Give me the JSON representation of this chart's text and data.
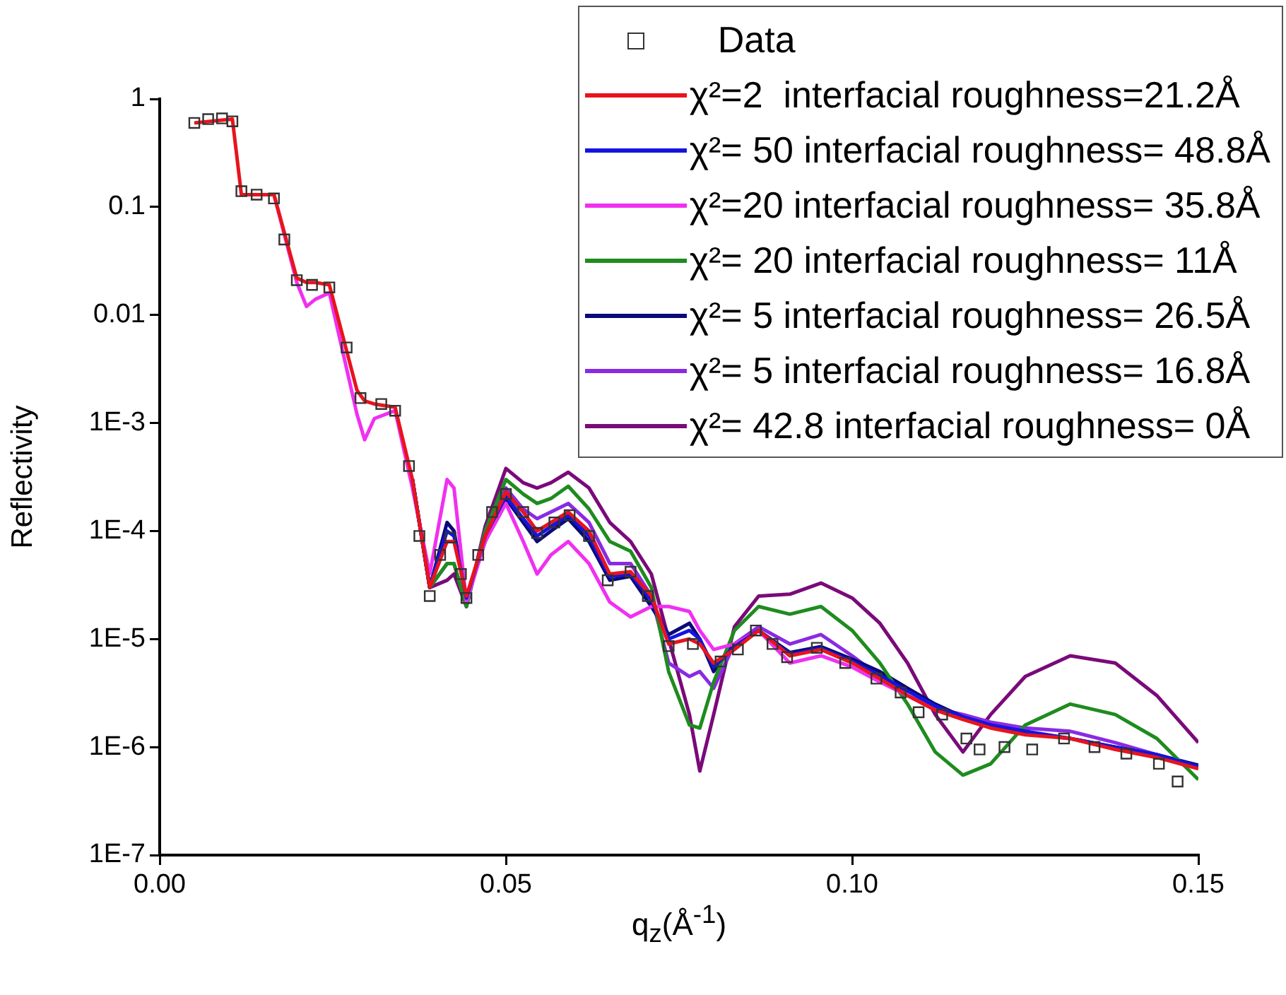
{
  "chart_data": {
    "type": "line",
    "xlabel": "q$_{z}$(Å$^{-1}$)",
    "ylabel": "Reflectivity",
    "log": "y",
    "grid": false,
    "legend": "top right",
    "xlim": [
      0,
      0.15
    ],
    "xticks": [
      {
        "value": 0,
        "label": "0.00"
      },
      {
        "value": 0.05,
        "label": "0.05"
      },
      {
        "value": 0.1,
        "label": "0.10"
      },
      {
        "value": 0.15,
        "label": "0.15"
      }
    ],
    "ylim": [
      1e-07,
      1
    ],
    "yticks": [
      {
        "value": 1e-07,
        "label": "1E-7"
      },
      {
        "value": 1e-06,
        "label": "1E-6"
      },
      {
        "value": 1e-05,
        "label": "1E-5"
      },
      {
        "value": 0.0001,
        "label": "1E-4"
      },
      {
        "value": 0.001,
        "label": "1E-3"
      },
      0.01,
      0.1,
      1
    ],
    "x": [
      0.005,
      0.0105,
      0.0118,
      0.0165,
      0.0198,
      0.0212,
      0.0225,
      0.0245,
      0.0285,
      0.0296,
      0.031,
      0.034,
      0.0365,
      0.039,
      0.0415,
      0.0425,
      0.0443,
      0.047,
      0.05,
      0.0525,
      0.0545,
      0.0565,
      0.059,
      0.062,
      0.065,
      0.068,
      0.071,
      0.0735,
      0.0765,
      0.078,
      0.08,
      0.083,
      0.0865,
      0.091,
      0.0955,
      0.1,
      0.104,
      0.108,
      0.112,
      0.116,
      0.12,
      0.125,
      0.1315,
      0.138,
      0.144,
      0.15
    ],
    "series": [
      {
        "name": "Data",
        "type": "scatter",
        "marker": "square",
        "color": "#333333",
        "x": [
          0.005,
          0.007,
          0.009,
          0.0105,
          0.0118,
          0.014,
          0.0165,
          0.018,
          0.0198,
          0.022,
          0.0245,
          0.027,
          0.029,
          0.032,
          0.034,
          0.036,
          0.0375,
          0.039,
          0.0405,
          0.042,
          0.0435,
          0.0443,
          0.046,
          0.048,
          0.05,
          0.0525,
          0.0545,
          0.057,
          0.0592,
          0.062,
          0.0647,
          0.068,
          0.0705,
          0.0735,
          0.077,
          0.081,
          0.0835,
          0.0861,
          0.0885,
          0.0906,
          0.0949,
          0.099,
          0.1035,
          0.107,
          0.1096,
          0.113,
          0.1165,
          0.1184,
          0.122,
          0.126,
          0.1306,
          0.135,
          0.1396,
          0.1443,
          0.147
        ],
        "values": [
          0.6,
          0.65,
          0.66,
          0.62,
          0.14,
          0.13,
          0.12,
          0.05,
          0.021,
          0.019,
          0.018,
          0.005,
          0.0017,
          0.0015,
          0.0013,
          0.0004,
          9e-05,
          2.5e-05,
          6e-05,
          8.7e-05,
          4e-05,
          2.4e-05,
          6e-05,
          0.00015,
          0.00022,
          0.00015,
          9.6e-05,
          0.00012,
          0.00014,
          9e-05,
          3.5e-05,
          4.2e-05,
          2.5e-05,
          8.6e-06,
          9e-06,
          6.2e-06,
          8e-06,
          1.2e-05,
          9e-06,
          6.8e-06,
          8.3e-06,
          6e-06,
          4.3e-06,
          3.2e-06,
          2.1e-06,
          2e-06,
          1.2e-06,
          9.5e-07,
          1e-06,
          9.5e-07,
          1.2e-06,
          1e-06,
          8.7e-07,
          7e-07,
          4.8e-07
        ]
      },
      {
        "name": "χ²=2  interfacial roughness=21.2Å",
        "color": "#e8141c",
        "values": [
          0.6,
          0.65,
          0.13,
          0.13,
          0.022,
          0.02,
          0.02,
          0.019,
          0.002,
          0.0016,
          0.0015,
          0.0014,
          0.0003,
          3e-05,
          8e-05,
          8e-05,
          2.5e-05,
          9e-05,
          0.00023,
          0.00015,
          0.0001,
          0.00012,
          0.00015,
          0.0001,
          4e-05,
          4.2e-05,
          2.5e-05,
          9e-06,
          1e-05,
          9e-06,
          6e-06,
          8e-06,
          1.2e-05,
          7e-06,
          8e-06,
          6e-06,
          4.3e-06,
          3e-06,
          2.2e-06,
          1.8e-06,
          1.5e-06,
          1.3e-06,
          1.2e-06,
          9.5e-07,
          8e-07,
          6.3e-07
        ]
      },
      {
        "name": "χ²= 50 interfacial roughness= 48.8Å",
        "color": "#1414e0",
        "values": [
          null,
          null,
          null,
          null,
          null,
          null,
          null,
          null,
          null,
          null,
          null,
          null,
          0.0003,
          3e-05,
          0.0001,
          9e-05,
          2.4e-05,
          9e-05,
          0.00021,
          0.00013,
          9e-05,
          0.00011,
          0.00014,
          9e-05,
          3.8e-05,
          4e-05,
          2.3e-05,
          1e-05,
          1.2e-05,
          1e-05,
          5.5e-06,
          8.5e-06,
          1.2e-05,
          7.2e-06,
          8.2e-06,
          6.2e-06,
          4.6e-06,
          3.3e-06,
          2.4e-06,
          1.9e-06,
          1.6e-06,
          1.4e-06,
          1.2e-06,
          1e-06,
          8.5e-07,
          6.6e-07
        ]
      },
      {
        "name": "χ²=20 interfacial roughness= 35.8Å",
        "color": "#f030f0",
        "values": [
          null,
          null,
          0.13,
          0.13,
          0.02,
          0.012,
          0.014,
          0.016,
          0.0012,
          0.0007,
          0.0011,
          0.0013,
          0.00025,
          4e-05,
          0.0003,
          0.00025,
          2.2e-05,
          8e-05,
          0.00018,
          8e-05,
          4e-05,
          6e-05,
          8e-05,
          5e-05,
          2.2e-05,
          1.6e-05,
          2e-05,
          2e-05,
          1.8e-05,
          1.2e-05,
          8e-06,
          9e-06,
          1.2e-05,
          6e-06,
          7e-06,
          5.5e-06,
          4e-06,
          3e-06,
          2.2e-06,
          null,
          null,
          null,
          null,
          null,
          null,
          null
        ]
      },
      {
        "name": "χ²= 20 interfacial roughness= 11Å",
        "color": "#1e8c1e",
        "values": [
          null,
          null,
          null,
          null,
          null,
          null,
          null,
          null,
          null,
          null,
          null,
          null,
          0.0003,
          3e-05,
          5e-05,
          5e-05,
          2e-05,
          0.0001,
          0.0003,
          0.00022,
          0.00018,
          0.0002,
          0.00026,
          0.00016,
          8e-05,
          6.5e-05,
          3e-05,
          5e-06,
          1.6e-06,
          1.5e-06,
          4e-06,
          1.2e-05,
          2e-05,
          1.7e-05,
          2e-05,
          1.2e-05,
          6e-06,
          2.5e-06,
          9e-07,
          5.5e-07,
          7e-07,
          1.6e-06,
          2.5e-06,
          2e-06,
          1.2e-06,
          5e-07
        ]
      },
      {
        "name": "χ²= 5 interfacial roughness= 26.5Å",
        "color": "#0a0a78",
        "values": [
          null,
          null,
          null,
          null,
          null,
          null,
          null,
          null,
          null,
          null,
          null,
          null,
          0.0003,
          3e-05,
          0.00012,
          0.0001,
          2.4e-05,
          8e-05,
          0.0002,
          0.00012,
          8e-05,
          0.0001,
          0.00013,
          8e-05,
          3.5e-05,
          3.8e-05,
          2e-05,
          1.1e-05,
          1.4e-05,
          1e-05,
          5e-06,
          9e-06,
          1.2e-05,
          7.5e-06,
          8.5e-06,
          6.5e-06,
          5e-06,
          3.5e-06,
          2.5e-06,
          1.9e-06,
          1.6e-06,
          1.35e-06,
          1.2e-06,
          1e-06,
          8.5e-07,
          6.8e-07
        ]
      },
      {
        "name": "χ²= 5 interfacial roughness= 16.8Å",
        "color": "#8a2be2",
        "values": [
          null,
          null,
          null,
          null,
          null,
          null,
          null,
          null,
          null,
          null,
          null,
          null,
          0.0003,
          3e-05,
          5e-05,
          5e-05,
          2e-05,
          0.0001,
          0.00025,
          0.00016,
          0.00013,
          0.00015,
          0.00018,
          0.00012,
          5e-05,
          5e-05,
          2.5e-05,
          6e-06,
          4.5e-06,
          5e-06,
          3.5e-06,
          9e-06,
          1.3e-05,
          9e-06,
          1.1e-05,
          7e-06,
          4.5e-06,
          3e-06,
          2.3e-06,
          2e-06,
          1.7e-06,
          1.5e-06,
          1.4e-06,
          1.1e-06,
          8.5e-07,
          6.5e-07
        ]
      },
      {
        "name": "χ²= 42.8 interfacial roughness= 0Å",
        "color": "#7a0a7a",
        "values": [
          null,
          null,
          null,
          null,
          null,
          null,
          null,
          null,
          null,
          null,
          null,
          null,
          0.0003,
          3e-05,
          3.5e-05,
          4e-05,
          2e-05,
          0.00011,
          0.00038,
          0.00028,
          0.00025,
          0.00028,
          0.00035,
          0.00025,
          0.00012,
          8e-05,
          4e-05,
          1e-05,
          2e-06,
          6e-07,
          2e-06,
          1.3e-05,
          2.5e-05,
          2.6e-05,
          3.3e-05,
          2.4e-05,
          1.4e-05,
          6e-06,
          2e-06,
          9e-07,
          2e-06,
          4.5e-06,
          7e-06,
          6e-06,
          3e-06,
          1.1e-06
        ]
      }
    ]
  }
}
